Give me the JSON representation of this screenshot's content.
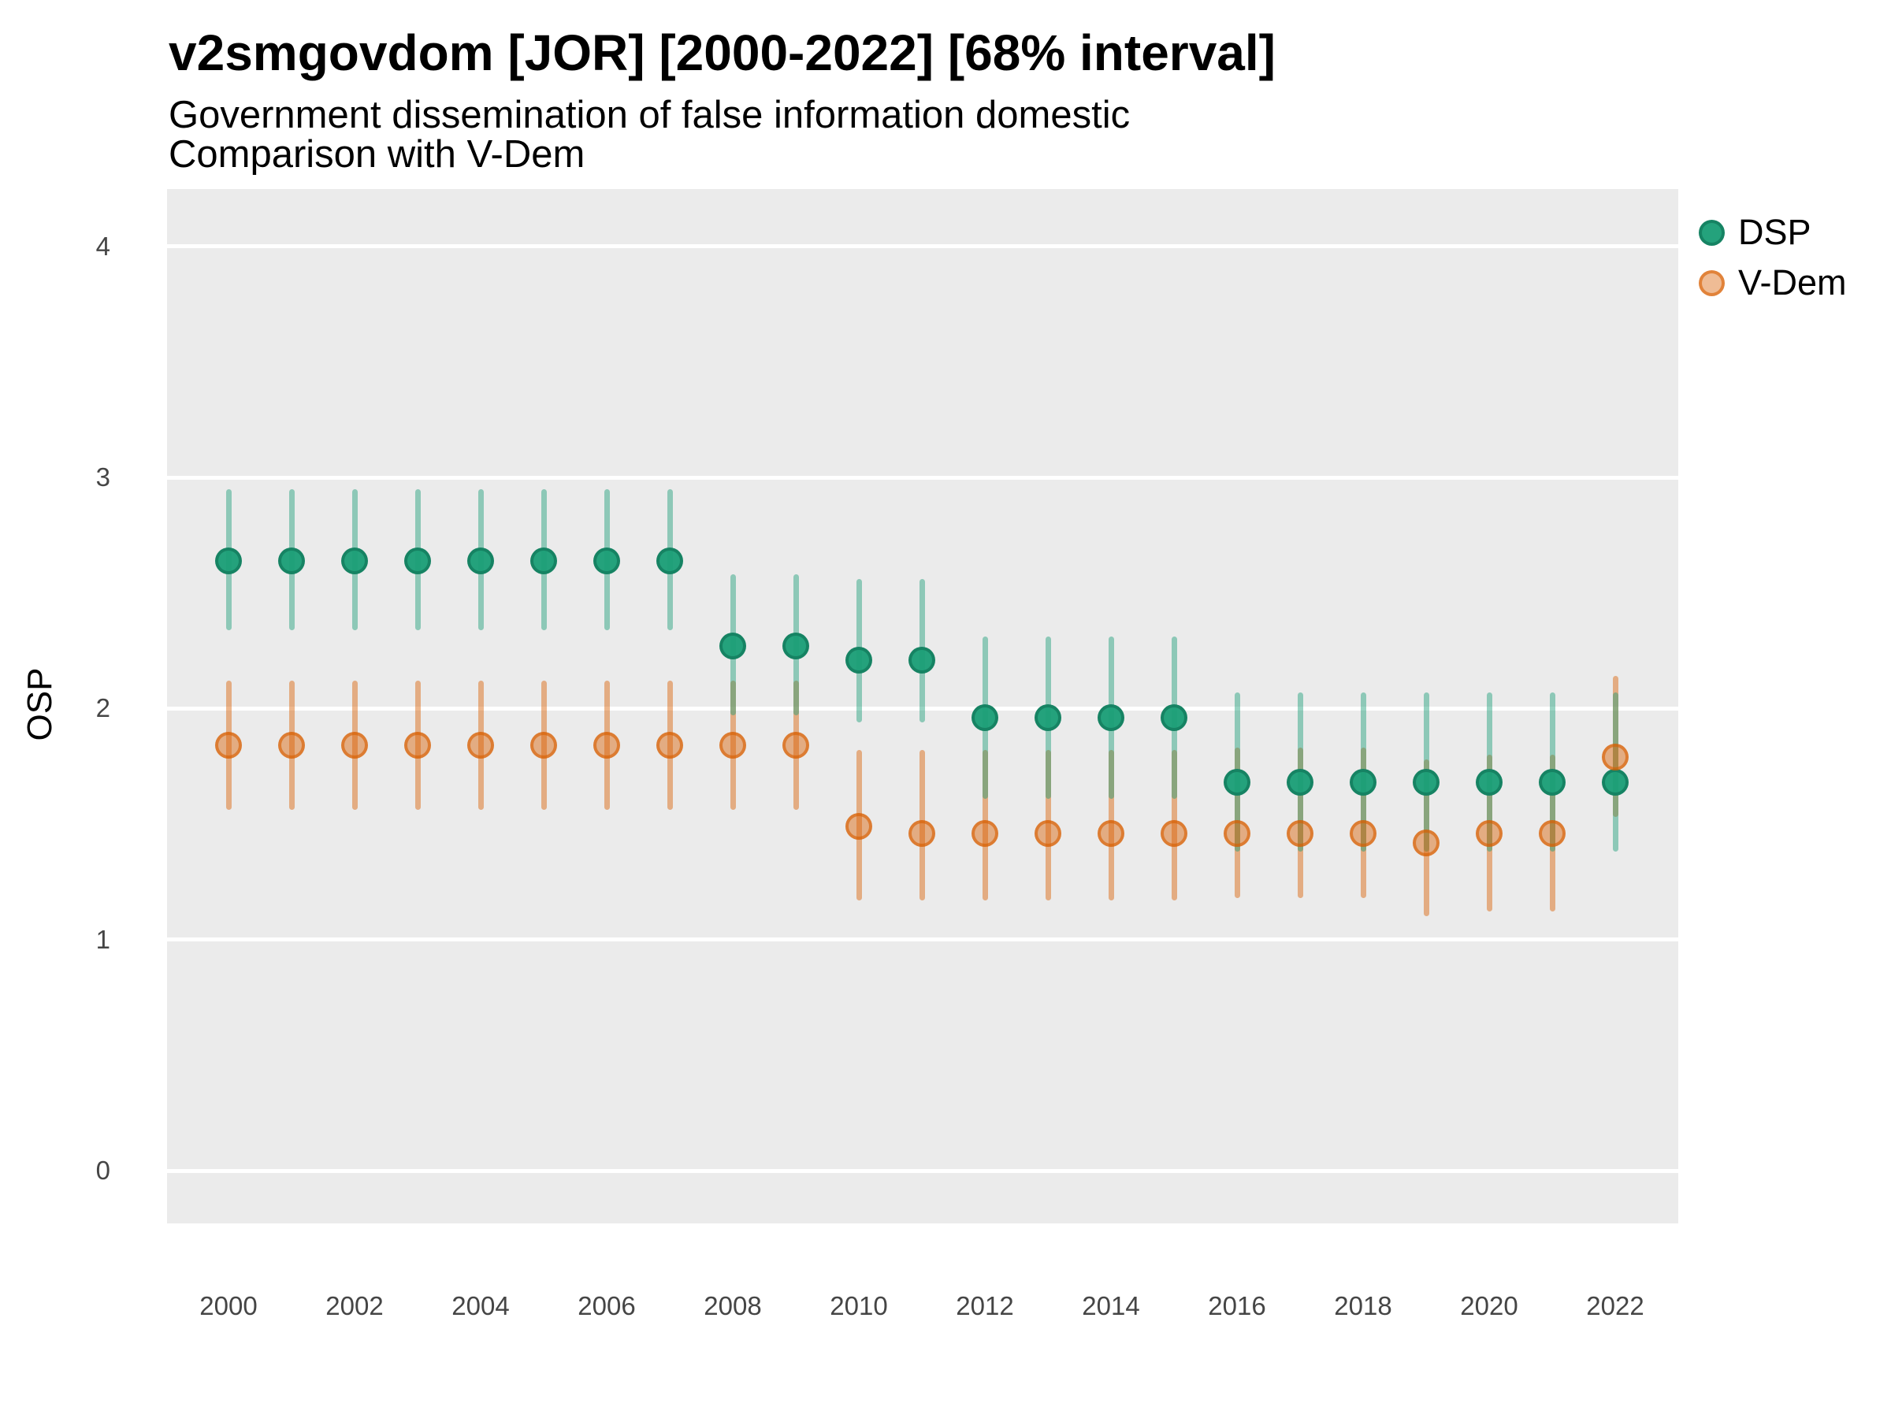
{
  "chart_data": {
    "type": "pointrange",
    "title": "v2smgovdom [JOR] [2000-2022] [68% interval]",
    "subtitle_lines": [
      "Government dissemination of false information domestic",
      "Comparison with V-Dem"
    ],
    "ylabel": "OSP",
    "xlabel": "",
    "interval_level": "68%",
    "xlim": [
      1999,
      2023
    ],
    "ylim": [
      -0.23,
      4.25
    ],
    "y_ticks": [
      0,
      1,
      2,
      3,
      4
    ],
    "x_ticks": [
      2000,
      2002,
      2004,
      2006,
      2008,
      2010,
      2012,
      2014,
      2016,
      2018,
      2020,
      2022
    ],
    "grid": "horizontal major gridlines only, white on gray panel",
    "legend_position": "right-top",
    "colors": {
      "dsp": "#1B9E77",
      "vdem": "#D95F02",
      "panel_bg": "#EBEBEB",
      "gridline": "#FFFFFF",
      "tick_text": "#454545",
      "title_text": "#000000"
    },
    "series": [
      {
        "name": "DSP",
        "color": "#1B9E77",
        "points": [
          {
            "year": 2000,
            "value": 2.64,
            "lo": 2.34,
            "hi": 2.95
          },
          {
            "year": 2001,
            "value": 2.64,
            "lo": 2.34,
            "hi": 2.95
          },
          {
            "year": 2002,
            "value": 2.64,
            "lo": 2.34,
            "hi": 2.95
          },
          {
            "year": 2003,
            "value": 2.64,
            "lo": 2.34,
            "hi": 2.95
          },
          {
            "year": 2004,
            "value": 2.64,
            "lo": 2.34,
            "hi": 2.95
          },
          {
            "year": 2005,
            "value": 2.64,
            "lo": 2.34,
            "hi": 2.95
          },
          {
            "year": 2006,
            "value": 2.64,
            "lo": 2.34,
            "hi": 2.95
          },
          {
            "year": 2007,
            "value": 2.64,
            "lo": 2.34,
            "hi": 2.95
          },
          {
            "year": 2008,
            "value": 2.27,
            "lo": 1.97,
            "hi": 2.58
          },
          {
            "year": 2009,
            "value": 2.27,
            "lo": 1.97,
            "hi": 2.58
          },
          {
            "year": 2010,
            "value": 2.21,
            "lo": 1.94,
            "hi": 2.56
          },
          {
            "year": 2011,
            "value": 2.21,
            "lo": 1.94,
            "hi": 2.56
          },
          {
            "year": 2012,
            "value": 1.96,
            "lo": 1.61,
            "hi": 2.31
          },
          {
            "year": 2013,
            "value": 1.96,
            "lo": 1.61,
            "hi": 2.31
          },
          {
            "year": 2014,
            "value": 1.96,
            "lo": 1.61,
            "hi": 2.31
          },
          {
            "year": 2015,
            "value": 1.96,
            "lo": 1.61,
            "hi": 2.31
          },
          {
            "year": 2016,
            "value": 1.68,
            "lo": 1.38,
            "hi": 2.07
          },
          {
            "year": 2017,
            "value": 1.68,
            "lo": 1.38,
            "hi": 2.07
          },
          {
            "year": 2018,
            "value": 1.68,
            "lo": 1.38,
            "hi": 2.07
          },
          {
            "year": 2019,
            "value": 1.68,
            "lo": 1.38,
            "hi": 2.07
          },
          {
            "year": 2020,
            "value": 1.68,
            "lo": 1.38,
            "hi": 2.07
          },
          {
            "year": 2021,
            "value": 1.68,
            "lo": 1.38,
            "hi": 2.07
          },
          {
            "year": 2022,
            "value": 1.68,
            "lo": 1.38,
            "hi": 2.07
          }
        ]
      },
      {
        "name": "V-Dem",
        "color": "#D95F02",
        "points": [
          {
            "year": 2000,
            "value": 1.84,
            "lo": 1.56,
            "hi": 2.12
          },
          {
            "year": 2001,
            "value": 1.84,
            "lo": 1.56,
            "hi": 2.12
          },
          {
            "year": 2002,
            "value": 1.84,
            "lo": 1.56,
            "hi": 2.12
          },
          {
            "year": 2003,
            "value": 1.84,
            "lo": 1.56,
            "hi": 2.12
          },
          {
            "year": 2004,
            "value": 1.84,
            "lo": 1.56,
            "hi": 2.12
          },
          {
            "year": 2005,
            "value": 1.84,
            "lo": 1.56,
            "hi": 2.12
          },
          {
            "year": 2006,
            "value": 1.84,
            "lo": 1.56,
            "hi": 2.12
          },
          {
            "year": 2007,
            "value": 1.84,
            "lo": 1.56,
            "hi": 2.12
          },
          {
            "year": 2008,
            "value": 1.84,
            "lo": 1.56,
            "hi": 2.12
          },
          {
            "year": 2009,
            "value": 1.84,
            "lo": 1.56,
            "hi": 2.12
          },
          {
            "year": 2010,
            "value": 1.49,
            "lo": 1.17,
            "hi": 1.82
          },
          {
            "year": 2011,
            "value": 1.46,
            "lo": 1.17,
            "hi": 1.82
          },
          {
            "year": 2012,
            "value": 1.46,
            "lo": 1.17,
            "hi": 1.82
          },
          {
            "year": 2013,
            "value": 1.46,
            "lo": 1.17,
            "hi": 1.82
          },
          {
            "year": 2014,
            "value": 1.46,
            "lo": 1.17,
            "hi": 1.82
          },
          {
            "year": 2015,
            "value": 1.46,
            "lo": 1.17,
            "hi": 1.82
          },
          {
            "year": 2016,
            "value": 1.46,
            "lo": 1.18,
            "hi": 1.83
          },
          {
            "year": 2017,
            "value": 1.46,
            "lo": 1.18,
            "hi": 1.83
          },
          {
            "year": 2018,
            "value": 1.46,
            "lo": 1.18,
            "hi": 1.83
          },
          {
            "year": 2019,
            "value": 1.42,
            "lo": 1.1,
            "hi": 1.78
          },
          {
            "year": 2020,
            "value": 1.46,
            "lo": 1.12,
            "hi": 1.8
          },
          {
            "year": 2021,
            "value": 1.46,
            "lo": 1.12,
            "hi": 1.8
          },
          {
            "year": 2022,
            "value": 1.79,
            "lo": 1.53,
            "hi": 2.14
          }
        ]
      }
    ]
  }
}
